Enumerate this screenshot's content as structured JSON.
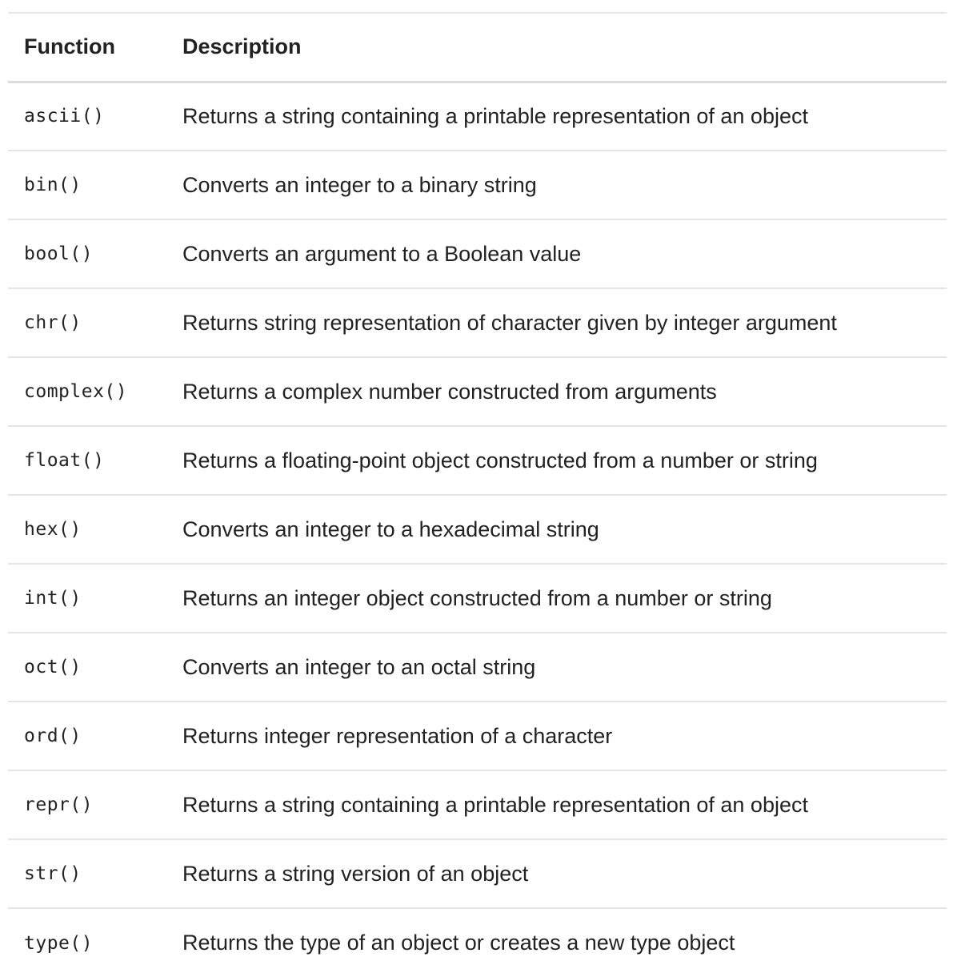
{
  "table": {
    "headers": {
      "function": "Function",
      "description": "Description"
    },
    "rows": [
      {
        "function": "ascii()",
        "description": "Returns a string containing a printable representation of an object"
      },
      {
        "function": "bin()",
        "description": "Converts an integer to a binary string"
      },
      {
        "function": "bool()",
        "description": "Converts an argument to a Boolean value"
      },
      {
        "function": "chr()",
        "description": "Returns string representation of character given by integer argument"
      },
      {
        "function": "complex()",
        "description": "Returns a complex number constructed from arguments"
      },
      {
        "function": "float()",
        "description": "Returns a floating-point object constructed from a number or string"
      },
      {
        "function": "hex()",
        "description": "Converts an integer to a hexadecimal string"
      },
      {
        "function": "int()",
        "description": "Returns an integer object constructed from a number or string"
      },
      {
        "function": "oct()",
        "description": "Converts an integer to an octal string"
      },
      {
        "function": "ord()",
        "description": "Returns integer representation of a character"
      },
      {
        "function": "repr()",
        "description": "Returns a string containing a printable representation of an object"
      },
      {
        "function": "str()",
        "description": "Returns a string version of an object"
      },
      {
        "function": "type()",
        "description": "Returns the type of an object or creates a new type object"
      }
    ]
  }
}
